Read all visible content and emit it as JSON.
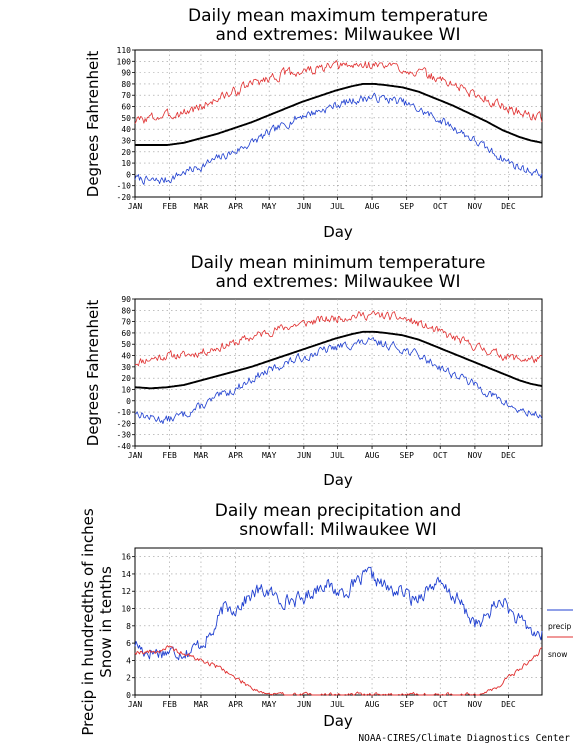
{
  "credit": "NOAA-CIRES/Climate Diagnostics Center",
  "colors": {
    "mean": "#000000",
    "high": "#e03030",
    "low": "#2040d0",
    "precip": "#2040d0",
    "snow": "#e03030",
    "grid": "#9a9a9a"
  },
  "chart_data": [
    {
      "type": "line",
      "title": [
        "Daily mean maximum temperature",
        "and extremes: Milwaukee WI"
      ],
      "xlabel": "Day",
      "ylabel": "Degrees Fahrenheit",
      "months": [
        "JAN",
        "FEB",
        "MAR",
        "APR",
        "MAY",
        "JUN",
        "JUL",
        "AUG",
        "SEP",
        "OCT",
        "NOV",
        "DEC"
      ],
      "ylim": [
        -20,
        110
      ],
      "yticks": [
        -20,
        -10,
        0,
        10,
        20,
        30,
        40,
        50,
        60,
        70,
        80,
        90,
        100,
        110
      ],
      "grid": true,
      "series": [
        {
          "key": "mean",
          "style": "mean",
          "x": [
            1,
            15,
            30,
            45,
            60,
            75,
            90,
            105,
            120,
            135,
            150,
            165,
            180,
            195,
            205,
            215,
            225,
            240,
            255,
            270,
            285,
            300,
            315,
            330,
            345,
            355,
            365
          ],
          "y": [
            26,
            26,
            26,
            28,
            32,
            36,
            41,
            46,
            52,
            58,
            64,
            69,
            74,
            78,
            80,
            80,
            79,
            77,
            73,
            67,
            61,
            54,
            47,
            39,
            33,
            30,
            28
          ]
        },
        {
          "key": "high",
          "style": "high",
          "noise": 7,
          "seed": 3,
          "x": [
            1,
            15,
            30,
            45,
            60,
            75,
            90,
            105,
            120,
            135,
            150,
            165,
            180,
            195,
            210,
            225,
            240,
            255,
            270,
            285,
            300,
            315,
            330,
            345,
            365
          ],
          "y": [
            47,
            50,
            52,
            55,
            60,
            67,
            73,
            80,
            85,
            89,
            91,
            93,
            95,
            96,
            97,
            96,
            94,
            90,
            85,
            80,
            73,
            67,
            60,
            55,
            50
          ]
        },
        {
          "key": "low",
          "style": "low",
          "noise": 6,
          "seed": 7,
          "x": [
            1,
            15,
            30,
            45,
            60,
            75,
            90,
            105,
            120,
            135,
            150,
            165,
            180,
            195,
            210,
            225,
            240,
            255,
            270,
            285,
            300,
            315,
            330,
            345,
            365
          ],
          "y": [
            -3,
            -6,
            -5,
            2,
            7,
            14,
            20,
            28,
            36,
            44,
            52,
            56,
            61,
            65,
            68,
            67,
            64,
            57,
            50,
            42,
            33,
            23,
            14,
            6,
            0
          ]
        }
      ]
    },
    {
      "type": "line",
      "title": [
        "Daily mean minimum temperature",
        "and extremes: Milwaukee WI"
      ],
      "xlabel": "Day",
      "ylabel": "Degrees Fahrenheit",
      "months": [
        "JAN",
        "FEB",
        "MAR",
        "APR",
        "MAY",
        "JUN",
        "JUL",
        "AUG",
        "SEP",
        "OCT",
        "NOV",
        "DEC"
      ],
      "ylim": [
        -40,
        90
      ],
      "yticks": [
        -40,
        -30,
        -20,
        -10,
        0,
        10,
        20,
        30,
        40,
        50,
        60,
        70,
        80,
        90
      ],
      "grid": true,
      "series": [
        {
          "key": "mean",
          "style": "mean",
          "x": [
            1,
            15,
            30,
            45,
            60,
            75,
            90,
            105,
            120,
            135,
            150,
            165,
            180,
            195,
            205,
            215,
            225,
            240,
            255,
            270,
            285,
            300,
            315,
            330,
            345,
            355,
            365
          ],
          "y": [
            12,
            11,
            12,
            14,
            18,
            22,
            26,
            30,
            35,
            40,
            45,
            50,
            55,
            59,
            61,
            61,
            60,
            58,
            54,
            48,
            42,
            36,
            30,
            24,
            18,
            15,
            13
          ]
        },
        {
          "key": "high",
          "style": "high",
          "noise": 6,
          "seed": 11,
          "x": [
            1,
            15,
            30,
            45,
            60,
            75,
            90,
            105,
            120,
            135,
            150,
            165,
            180,
            195,
            210,
            225,
            240,
            255,
            270,
            285,
            300,
            315,
            330,
            345,
            365
          ],
          "y": [
            34,
            37,
            40,
            40,
            43,
            47,
            51,
            56,
            61,
            65,
            68,
            71,
            73,
            75,
            76,
            75,
            73,
            68,
            62,
            56,
            50,
            45,
            40,
            37,
            36
          ]
        },
        {
          "key": "low",
          "style": "low",
          "noise": 6,
          "seed": 13,
          "x": [
            1,
            15,
            30,
            45,
            60,
            75,
            90,
            105,
            120,
            135,
            150,
            165,
            180,
            195,
            210,
            225,
            240,
            255,
            270,
            285,
            300,
            315,
            330,
            345,
            365
          ],
          "y": [
            -10,
            -15,
            -17,
            -12,
            -5,
            3,
            10,
            19,
            26,
            33,
            38,
            43,
            47,
            50,
            52,
            50,
            46,
            40,
            32,
            24,
            17,
            8,
            -1,
            -9,
            -13
          ]
        }
      ]
    },
    {
      "type": "line",
      "title": [
        "Daily mean precipitation and",
        "snowfall: Milwaukee WI"
      ],
      "xlabel": "Day",
      "ylabel": [
        "Precip in hundredths of inches",
        "Snow in tenths"
      ],
      "months": [
        "JAN",
        "FEB",
        "MAR",
        "APR",
        "MAY",
        "JUN",
        "JUL",
        "AUG",
        "SEP",
        "OCT",
        "NOV",
        "DEC"
      ],
      "ylim": [
        0,
        17
      ],
      "yticks": [
        0,
        2,
        4,
        6,
        8,
        10,
        12,
        14,
        16
      ],
      "grid": true,
      "series": [
        {
          "key": "precip",
          "name": "precip",
          "style": "precip",
          "noise": 1.3,
          "seed": 17,
          "x": [
            1,
            10,
            20,
            30,
            40,
            50,
            60,
            70,
            80,
            90,
            100,
            110,
            120,
            130,
            140,
            150,
            160,
            170,
            180,
            190,
            200,
            210,
            220,
            230,
            240,
            250,
            260,
            270,
            280,
            290,
            300,
            310,
            320,
            330,
            340,
            350,
            360,
            365
          ],
          "y": [
            6,
            5,
            5,
            5,
            5,
            5,
            6,
            7,
            10,
            10,
            11,
            12,
            12,
            11,
            11,
            11,
            12,
            13,
            12,
            12,
            13,
            14,
            13,
            12,
            12,
            11,
            12,
            13,
            12,
            11,
            9,
            8,
            10,
            11,
            9,
            8,
            7,
            7
          ]
        },
        {
          "key": "snow",
          "name": "snow",
          "style": "snow",
          "noise": 0.45,
          "seed": 19,
          "x": [
            1,
            10,
            20,
            30,
            40,
            50,
            60,
            70,
            80,
            90,
            100,
            110,
            120,
            130,
            300,
            310,
            320,
            330,
            340,
            350,
            360,
            365
          ],
          "y": [
            5,
            5,
            5,
            5.5,
            5,
            4.5,
            4,
            3.5,
            3,
            2,
            1.3,
            0.6,
            0.1,
            0,
            0,
            0.2,
            0.5,
            1.5,
            2.5,
            3.5,
            4.5,
            5.5
          ]
        }
      ]
    }
  ]
}
